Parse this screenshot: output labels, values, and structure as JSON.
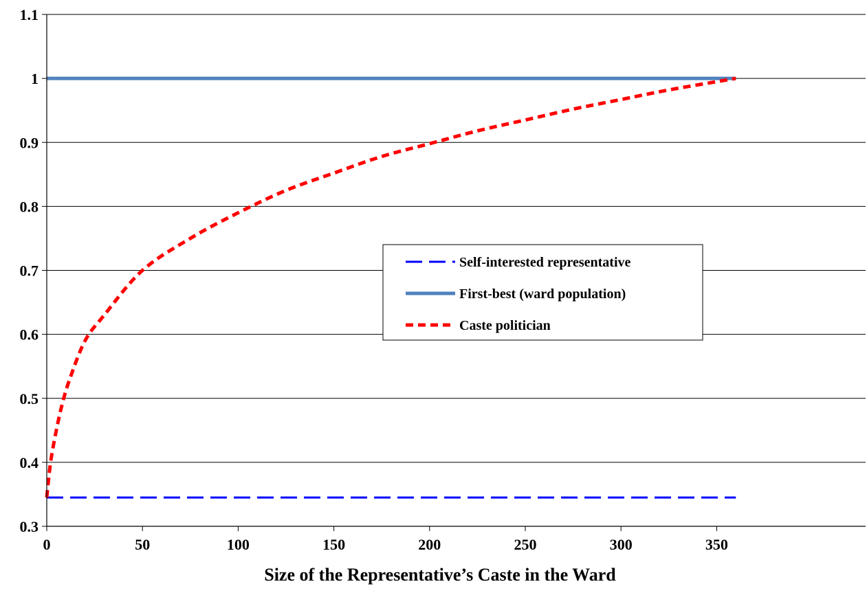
{
  "chart_data": {
    "type": "line",
    "title": "",
    "xlabel": "Size of the Representative’s Caste in the Ward",
    "ylabel": "",
    "xlim": [
      0,
      360
    ],
    "ylim": [
      0.3,
      1.1
    ],
    "grid": "horizontal",
    "legend_position": "center-right",
    "x_ticks": [
      "0",
      "50",
      "100",
      "150",
      "200",
      "250",
      "300",
      "350"
    ],
    "y_ticks": [
      "0.3",
      "0.4",
      "0.5",
      "0.6",
      "0.7",
      "0.8",
      "0.9",
      "1",
      "1.1"
    ],
    "series": [
      {
        "name": "Self-interested representative",
        "color": "#0000ff",
        "style": "long-dash",
        "x": [
          0,
          360
        ],
        "y": [
          0.345,
          0.345
        ]
      },
      {
        "name": "First-best (ward population)",
        "color": "#4f81bd",
        "style": "solid",
        "x": [
          0,
          360
        ],
        "y": [
          1.0,
          1.0
        ]
      },
      {
        "name": "Caste politician",
        "color": "#ff0000",
        "style": "short-dash",
        "x": [
          0,
          2,
          5,
          8,
          12,
          20,
          30,
          50,
          75,
          100,
          125,
          150,
          175,
          200,
          225,
          250,
          275,
          300,
          325,
          360
        ],
        "y": [
          0.345,
          0.4,
          0.45,
          0.49,
          0.53,
          0.59,
          0.63,
          0.7,
          0.75,
          0.79,
          0.825,
          0.852,
          0.878,
          0.898,
          0.918,
          0.935,
          0.952,
          0.967,
          0.982,
          1.0
        ]
      }
    ]
  }
}
